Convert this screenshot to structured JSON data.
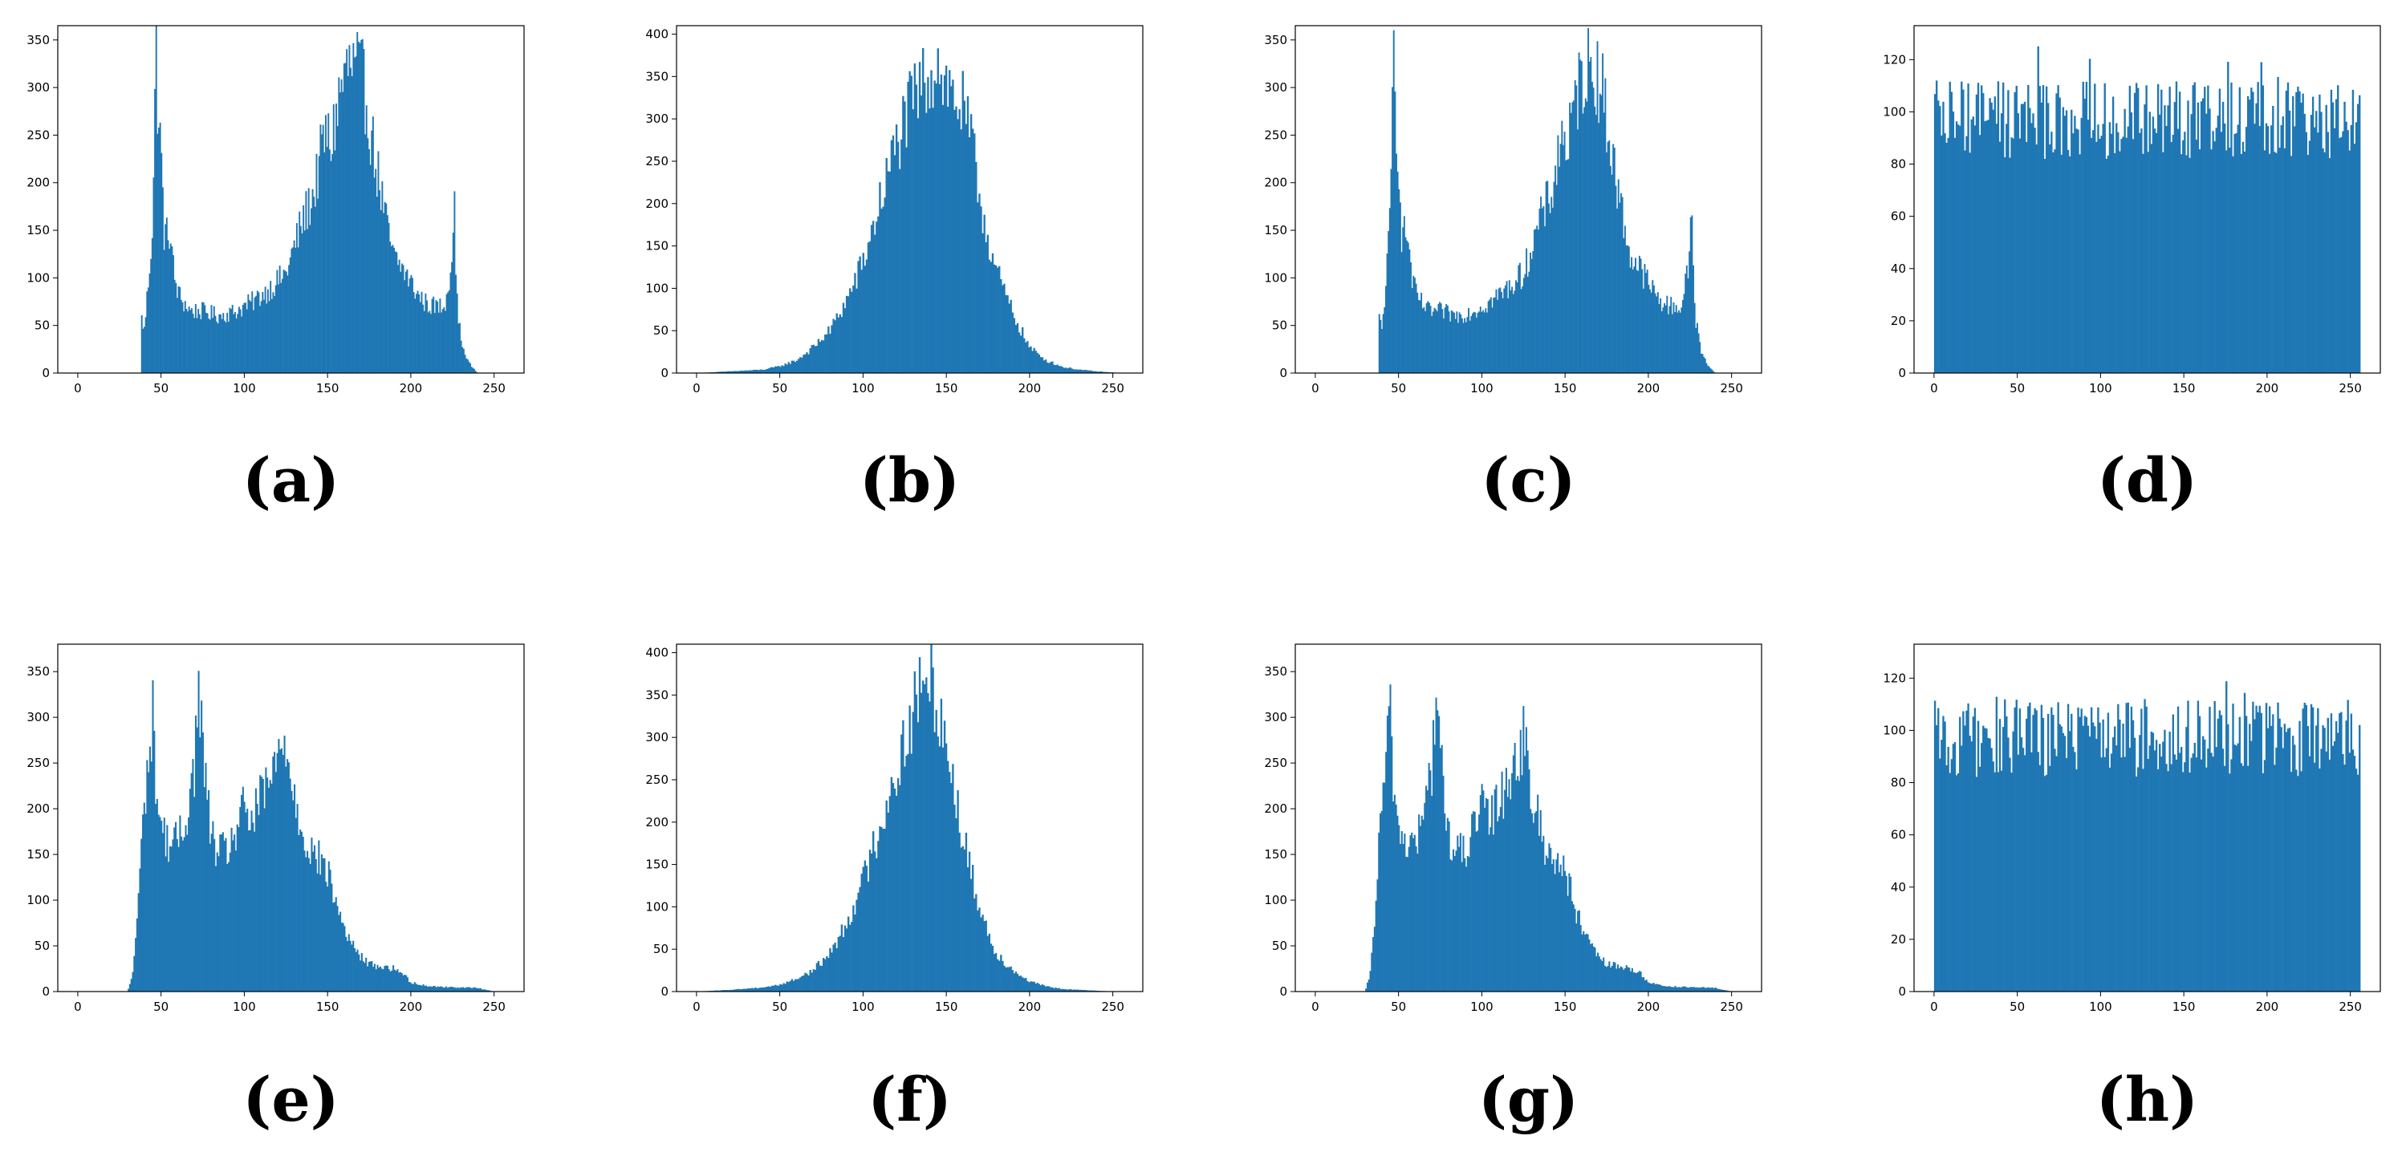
{
  "chart_data": [
    {
      "type": "bar",
      "panel_label": "(a)",
      "xlim": [
        -12,
        268
      ],
      "ylim": [
        0,
        365
      ],
      "x_ticks": [
        0,
        50,
        100,
        150,
        200,
        250
      ],
      "y_ticks": [
        0,
        50,
        100,
        150,
        200,
        250,
        300,
        350
      ],
      "bar_color": "#1f77b4",
      "data_range": [
        38,
        240
      ],
      "profile": [
        [
          38,
          60
        ],
        [
          40,
          45
        ],
        [
          43,
          110
        ],
        [
          45,
          160
        ],
        [
          47,
          350
        ],
        [
          48,
          280
        ],
        [
          50,
          230
        ],
        [
          52,
          140
        ],
        [
          55,
          150
        ],
        [
          58,
          100
        ],
        [
          60,
          85
        ],
        [
          63,
          75
        ],
        [
          68,
          65
        ],
        [
          75,
          65
        ],
        [
          85,
          60
        ],
        [
          95,
          65
        ],
        [
          105,
          75
        ],
        [
          115,
          88
        ],
        [
          125,
          105
        ],
        [
          135,
          160
        ],
        [
          142,
          190
        ],
        [
          148,
          250
        ],
        [
          152,
          240
        ],
        [
          158,
          300
        ],
        [
          162,
          320
        ],
        [
          168,
          320
        ],
        [
          172,
          300
        ],
        [
          178,
          230
        ],
        [
          182,
          190
        ],
        [
          186,
          150
        ],
        [
          190,
          120
        ],
        [
          195,
          110
        ],
        [
          200,
          95
        ],
        [
          205,
          80
        ],
        [
          210,
          72
        ],
        [
          215,
          70
        ],
        [
          220,
          70
        ],
        [
          224,
          110
        ],
        [
          226,
          180
        ],
        [
          228,
          60
        ],
        [
          232,
          20
        ],
        [
          236,
          8
        ],
        [
          240,
          0
        ]
      ]
    },
    {
      "type": "bar",
      "panel_label": "(b)",
      "xlim": [
        -12,
        268
      ],
      "ylim": [
        0,
        410
      ],
      "x_ticks": [
        0,
        50,
        100,
        150,
        200,
        250
      ],
      "y_ticks": [
        0,
        50,
        100,
        150,
        200,
        250,
        300,
        350,
        400
      ],
      "bar_color": "#1f77b4",
      "data_range": [
        0,
        255
      ],
      "profile": [
        [
          0,
          0
        ],
        [
          20,
          2
        ],
        [
          40,
          4
        ],
        [
          50,
          8
        ],
        [
          60,
          15
        ],
        [
          70,
          30
        ],
        [
          80,
          50
        ],
        [
          90,
          85
        ],
        [
          100,
          130
        ],
        [
          110,
          200
        ],
        [
          120,
          270
        ],
        [
          130,
          320
        ],
        [
          140,
          355
        ],
        [
          145,
          370
        ],
        [
          150,
          340
        ],
        [
          160,
          310
        ],
        [
          165,
          270
        ],
        [
          170,
          210
        ],
        [
          175,
          160
        ],
        [
          180,
          120
        ],
        [
          185,
          95
        ],
        [
          190,
          70
        ],
        [
          195,
          50
        ],
        [
          200,
          30
        ],
        [
          210,
          15
        ],
        [
          220,
          7
        ],
        [
          230,
          4
        ],
        [
          240,
          2
        ],
        [
          255,
          0
        ]
      ]
    },
    {
      "type": "bar",
      "panel_label": "(c)",
      "xlim": [
        -12,
        268
      ],
      "ylim": [
        0,
        365
      ],
      "x_ticks": [
        0,
        50,
        100,
        150,
        200,
        250
      ],
      "y_ticks": [
        0,
        50,
        100,
        150,
        200,
        250,
        300,
        350
      ],
      "bar_color": "#1f77b4",
      "data_range": [
        38,
        240
      ],
      "profile": [
        [
          38,
          60
        ],
        [
          40,
          45
        ],
        [
          43,
          110
        ],
        [
          45,
          160
        ],
        [
          47,
          350
        ],
        [
          48,
          280
        ],
        [
          50,
          230
        ],
        [
          52,
          140
        ],
        [
          55,
          150
        ],
        [
          58,
          100
        ],
        [
          60,
          85
        ],
        [
          63,
          75
        ],
        [
          68,
          65
        ],
        [
          75,
          65
        ],
        [
          85,
          60
        ],
        [
          95,
          65
        ],
        [
          105,
          75
        ],
        [
          115,
          88
        ],
        [
          125,
          105
        ],
        [
          135,
          160
        ],
        [
          142,
          190
        ],
        [
          148,
          250
        ],
        [
          152,
          240
        ],
        [
          158,
          300
        ],
        [
          162,
          320
        ],
        [
          168,
          320
        ],
        [
          172,
          300
        ],
        [
          178,
          230
        ],
        [
          182,
          190
        ],
        [
          186,
          150
        ],
        [
          190,
          120
        ],
        [
          195,
          110
        ],
        [
          200,
          95
        ],
        [
          205,
          80
        ],
        [
          210,
          72
        ],
        [
          215,
          70
        ],
        [
          220,
          70
        ],
        [
          224,
          110
        ],
        [
          226,
          180
        ],
        [
          228,
          60
        ],
        [
          232,
          20
        ],
        [
          236,
          8
        ],
        [
          240,
          0
        ]
      ]
    },
    {
      "type": "bar",
      "panel_label": "(d)",
      "xlim": [
        -12,
        268
      ],
      "ylim": [
        0,
        133
      ],
      "x_ticks": [
        0,
        50,
        100,
        150,
        200,
        250
      ],
      "y_ticks": [
        0,
        20,
        40,
        60,
        80,
        100,
        120
      ],
      "bar_color": "#1f77b4",
      "data_range": [
        0,
        256
      ],
      "profile": [
        [
          0,
          97
        ],
        [
          50,
          97
        ],
        [
          100,
          97
        ],
        [
          150,
          97
        ],
        [
          200,
          97
        ],
        [
          256,
          97
        ]
      ]
    },
    {
      "type": "bar",
      "panel_label": "(e)",
      "xlim": [
        -12,
        268
      ],
      "ylim": [
        0,
        380
      ],
      "x_ticks": [
        0,
        50,
        100,
        150,
        200,
        250
      ],
      "y_ticks": [
        0,
        50,
        100,
        150,
        200,
        250,
        300,
        350
      ],
      "bar_color": "#1f77b4",
      "data_range": [
        30,
        250
      ],
      "profile": [
        [
          30,
          0
        ],
        [
          33,
          20
        ],
        [
          36,
          90
        ],
        [
          40,
          210
        ],
        [
          43,
          260
        ],
        [
          45,
          300
        ],
        [
          48,
          200
        ],
        [
          52,
          170
        ],
        [
          57,
          160
        ],
        [
          62,
          170
        ],
        [
          66,
          200
        ],
        [
          70,
          250
        ],
        [
          73,
          330
        ],
        [
          76,
          240
        ],
        [
          80,
          170
        ],
        [
          85,
          150
        ],
        [
          90,
          155
        ],
        [
          95,
          175
        ],
        [
          100,
          200
        ],
        [
          105,
          185
        ],
        [
          110,
          210
        ],
        [
          115,
          230
        ],
        [
          120,
          250
        ],
        [
          125,
          280
        ],
        [
          128,
          230
        ],
        [
          132,
          200
        ],
        [
          137,
          165
        ],
        [
          142,
          150
        ],
        [
          147,
          140
        ],
        [
          152,
          120
        ],
        [
          156,
          90
        ],
        [
          160,
          70
        ],
        [
          165,
          50
        ],
        [
          170,
          38
        ],
        [
          175,
          30
        ],
        [
          180,
          28
        ],
        [
          190,
          25
        ],
        [
          195,
          20
        ],
        [
          200,
          10
        ],
        [
          210,
          6
        ],
        [
          220,
          5
        ],
        [
          240,
          4
        ],
        [
          250,
          0
        ]
      ]
    },
    {
      "type": "bar",
      "panel_label": "(f)",
      "xlim": [
        -12,
        268
      ],
      "ylim": [
        0,
        410
      ],
      "x_ticks": [
        0,
        50,
        100,
        150,
        200,
        250
      ],
      "y_ticks": [
        0,
        50,
        100,
        150,
        200,
        250,
        300,
        350,
        400
      ],
      "bar_color": "#1f77b4",
      "data_range": [
        0,
        255
      ],
      "profile": [
        [
          0,
          0
        ],
        [
          20,
          2
        ],
        [
          40,
          5
        ],
        [
          50,
          8
        ],
        [
          60,
          15
        ],
        [
          70,
          25
        ],
        [
          80,
          45
        ],
        [
          90,
          80
        ],
        [
          100,
          130
        ],
        [
          110,
          195
        ],
        [
          120,
          260
        ],
        [
          130,
          330
        ],
        [
          135,
          355
        ],
        [
          140,
          370
        ],
        [
          145,
          345
        ],
        [
          150,
          290
        ],
        [
          155,
          240
        ],
        [
          160,
          180
        ],
        [
          165,
          140
        ],
        [
          170,
          100
        ],
        [
          175,
          70
        ],
        [
          180,
          45
        ],
        [
          190,
          25
        ],
        [
          200,
          12
        ],
        [
          210,
          6
        ],
        [
          220,
          3
        ],
        [
          240,
          1
        ],
        [
          255,
          0
        ]
      ]
    },
    {
      "type": "bar",
      "panel_label": "(g)",
      "xlim": [
        -12,
        268
      ],
      "ylim": [
        0,
        380
      ],
      "x_ticks": [
        0,
        50,
        100,
        150,
        200,
        250
      ],
      "y_ticks": [
        0,
        50,
        100,
        150,
        200,
        250,
        300,
        350
      ],
      "bar_color": "#1f77b4",
      "data_range": [
        30,
        250
      ],
      "profile": [
        [
          30,
          0
        ],
        [
          33,
          20
        ],
        [
          36,
          90
        ],
        [
          40,
          210
        ],
        [
          43,
          260
        ],
        [
          45,
          300
        ],
        [
          48,
          200
        ],
        [
          52,
          170
        ],
        [
          57,
          160
        ],
        [
          62,
          170
        ],
        [
          66,
          200
        ],
        [
          70,
          250
        ],
        [
          73,
          330
        ],
        [
          76,
          240
        ],
        [
          80,
          170
        ],
        [
          85,
          150
        ],
        [
          90,
          155
        ],
        [
          95,
          175
        ],
        [
          100,
          200
        ],
        [
          105,
          185
        ],
        [
          110,
          210
        ],
        [
          115,
          230
        ],
        [
          120,
          250
        ],
        [
          125,
          280
        ],
        [
          128,
          230
        ],
        [
          132,
          200
        ],
        [
          137,
          165
        ],
        [
          142,
          150
        ],
        [
          147,
          140
        ],
        [
          152,
          120
        ],
        [
          156,
          90
        ],
        [
          160,
          70
        ],
        [
          165,
          50
        ],
        [
          170,
          38
        ],
        [
          175,
          30
        ],
        [
          180,
          28
        ],
        [
          190,
          25
        ],
        [
          195,
          20
        ],
        [
          200,
          10
        ],
        [
          210,
          6
        ],
        [
          220,
          5
        ],
        [
          240,
          4
        ],
        [
          250,
          0
        ]
      ]
    },
    {
      "type": "bar",
      "panel_label": "(h)",
      "xlim": [
        -12,
        268
      ],
      "ylim": [
        0,
        133
      ],
      "x_ticks": [
        0,
        50,
        100,
        150,
        200,
        250
      ],
      "y_ticks": [
        0,
        20,
        40,
        60,
        80,
        100,
        120
      ],
      "bar_color": "#1f77b4",
      "data_range": [
        0,
        256
      ],
      "profile": [
        [
          0,
          97
        ],
        [
          50,
          97
        ],
        [
          100,
          97
        ],
        [
          150,
          97
        ],
        [
          200,
          97
        ],
        [
          256,
          97
        ]
      ]
    }
  ]
}
